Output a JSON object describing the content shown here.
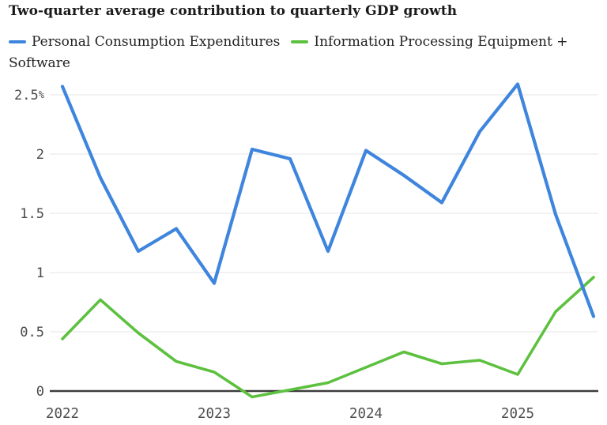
{
  "title": "Two-quarter average contribution to quarterly GDP growth",
  "legend": {
    "items": [
      {
        "label": "Personal Consumption Expenditures",
        "color": "#3E85DD"
      },
      {
        "label": "Information Processing Equipment + Software",
        "label_lines": [
          "Information Processing Equipment +",
          "Software"
        ],
        "color": "#5DC13F"
      }
    ]
  },
  "chart_data": {
    "type": "line",
    "title": "Two-quarter average contribution to quarterly GDP growth",
    "xlabel": "",
    "ylabel": "",
    "unit": "%",
    "ylim": [
      -0.1,
      2.7
    ],
    "grid": "horizontal",
    "legend_position": "top",
    "categories": [
      "2022 Q1",
      "2022 Q2",
      "2022 Q3",
      "2022 Q4",
      "2023 Q1",
      "2023 Q2",
      "2023 Q3",
      "2023 Q4",
      "2024 Q1",
      "2024 Q2",
      "2024 Q3",
      "2024 Q4",
      "2025 Q1",
      "2025 Q2",
      "2025 Q3"
    ],
    "series": [
      {
        "id": "pce",
        "name": "Personal Consumption Expenditures",
        "color": "#3E85DD",
        "values": [
          2.57,
          1.8,
          1.18,
          1.37,
          0.91,
          2.04,
          1.96,
          1.18,
          2.03,
          1.82,
          1.59,
          2.19,
          2.59,
          1.49,
          0.63
        ]
      },
      {
        "id": "ipe",
        "name": "Information Processing Equipment + Software",
        "color": "#5DC13F",
        "values": [
          0.44,
          0.77,
          0.49,
          0.25,
          0.16,
          -0.05,
          0.01,
          0.07,
          0.2,
          0.33,
          0.23,
          0.26,
          0.14,
          0.67,
          0.96
        ]
      }
    ],
    "y_axis": {
      "ticks": [
        {
          "value": 2.5,
          "label": "2.5%"
        },
        {
          "value": 2.0,
          "label": "2"
        },
        {
          "value": 1.5,
          "label": "1.5"
        },
        {
          "value": 1.0,
          "label": "1"
        },
        {
          "value": 0.5,
          "label": "0.5"
        },
        {
          "value": 0.0,
          "label": "0"
        }
      ]
    },
    "x_axis": {
      "ticks": [
        {
          "index": 0,
          "label": "2022"
        },
        {
          "index": 4,
          "label": "2023"
        },
        {
          "index": 8,
          "label": "2024"
        },
        {
          "index": 12,
          "label": "2025"
        }
      ]
    },
    "style": {
      "grid_color": "#ebebeb",
      "axis_color": "#3d3d3d",
      "tick_color": "#4a4a4a"
    }
  }
}
